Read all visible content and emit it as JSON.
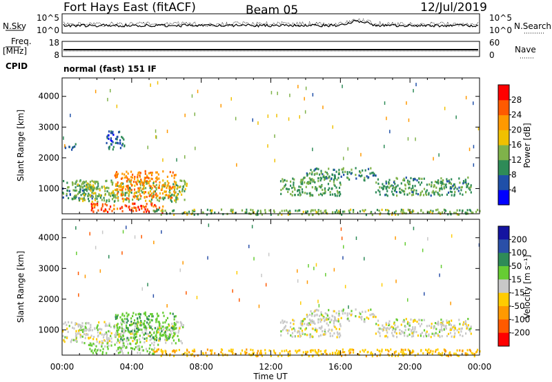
{
  "header": {
    "station": "Fort Hays East (fitACF)",
    "beam": "Beam 05",
    "date": "12/Jul/2019"
  },
  "noise_panel": {
    "left_label": "N.Sky",
    "right_label": "N.Search",
    "left_ticks": [
      "10^5",
      "10^0"
    ],
    "right_ticks": [
      "10^5",
      "10^0"
    ]
  },
  "freq_panel": {
    "left_label": "Freq.",
    "left_unit": "[MHz]",
    "right_label": "Nave",
    "left_ticks": [
      "18",
      "8"
    ],
    "right_ticks": [
      "60",
      "0"
    ]
  },
  "cpid": {
    "label": "CPID",
    "mode": "normal (fast) 151 IF"
  },
  "chart_data": [
    {
      "type": "heatmap",
      "title": "",
      "ylabel": "Slant Range [km]",
      "xlabel": "",
      "x_ticks": [
        "00:00",
        "04:00",
        "08:00",
        "12:00",
        "16:00",
        "20:00",
        "00:00"
      ],
      "y_ticks": [
        1000,
        2000,
        3000,
        4000
      ],
      "ylim": [
        180,
        4600
      ],
      "xlim_hours": [
        0,
        24
      ],
      "colorbar": {
        "label": "Power [dB]",
        "ticks": [
          4,
          8,
          12,
          16,
          20,
          24,
          28
        ],
        "range": [
          0,
          32
        ],
        "colors": [
          "#0000ff",
          "#1f4fa8",
          "#2e8b57",
          "#7fb24a",
          "#f0c000",
          "#ff9900",
          "#ff5a00",
          "#ff0000"
        ]
      },
      "regions": [
        {
          "t": [
            0.0,
            2.0
          ],
          "range": [
            700,
            1300
          ],
          "value": 10
        },
        {
          "t": [
            0.5,
            7.2
          ],
          "range": [
            600,
            1300
          ],
          "value": 14
        },
        {
          "t": [
            3.0,
            6.5
          ],
          "range": [
            700,
            1600
          ],
          "value": 23
        },
        {
          "t": [
            1.5,
            5.8
          ],
          "range": [
            250,
            550
          ],
          "value": 27
        },
        {
          "t": [
            5.0,
            24.0
          ],
          "range": [
            180,
            350
          ],
          "value": 13
        },
        {
          "t": [
            12.5,
            16.0
          ],
          "range": [
            800,
            1400
          ],
          "value": 12
        },
        {
          "t": [
            14.0,
            18.0
          ],
          "range": [
            1300,
            1700
          ],
          "value": 10
        },
        {
          "t": [
            18.0,
            23.5
          ],
          "range": [
            800,
            1400
          ],
          "value": 11
        },
        {
          "t": [
            0.1,
            0.8
          ],
          "range": [
            2300,
            2500
          ],
          "value": 9
        },
        {
          "t": [
            2.5,
            3.6
          ],
          "range": [
            2300,
            2900
          ],
          "value": 6
        }
      ]
    },
    {
      "type": "heatmap",
      "title": "",
      "ylabel": "Slant Range [km]",
      "xlabel": "Time UT",
      "x_ticks": [
        "00:00",
        "04:00",
        "08:00",
        "12:00",
        "16:00",
        "20:00",
        "00:00"
      ],
      "y_ticks": [
        1000,
        2000,
        3000,
        4000
      ],
      "ylim": [
        180,
        4600
      ],
      "xlim_hours": [
        0,
        24
      ],
      "colorbar": {
        "label": "Velocity [m s⁻¹]",
        "ticks": [
          200,
          100,
          50,
          15,
          -15,
          -50,
          -100,
          -200
        ],
        "colors": [
          "#1414a0",
          "#2a4fa8",
          "#2e8b57",
          "#66cc33",
          "#c8c8c8",
          "#ffcc00",
          "#ff9900",
          "#ff5a00",
          "#ff0000"
        ]
      },
      "regions": [
        {
          "t": [
            0.0,
            7.0
          ],
          "range": [
            600,
            1300
          ],
          "value": 0
        },
        {
          "t": [
            3.0,
            6.5
          ],
          "range": [
            700,
            1600
          ],
          "value": 40
        },
        {
          "t": [
            1.5,
            5.5
          ],
          "range": [
            250,
            600
          ],
          "value": 20
        },
        {
          "t": [
            5.0,
            24.0
          ],
          "range": [
            180,
            400
          ],
          "value": -40
        },
        {
          "t": [
            12.5,
            16.0
          ],
          "range": [
            800,
            1400
          ],
          "value": 0
        },
        {
          "t": [
            14.0,
            18.0
          ],
          "range": [
            1300,
            1700
          ],
          "value": 0
        },
        {
          "t": [
            18.0,
            23.5
          ],
          "range": [
            800,
            1400
          ],
          "value": 0
        }
      ]
    }
  ]
}
